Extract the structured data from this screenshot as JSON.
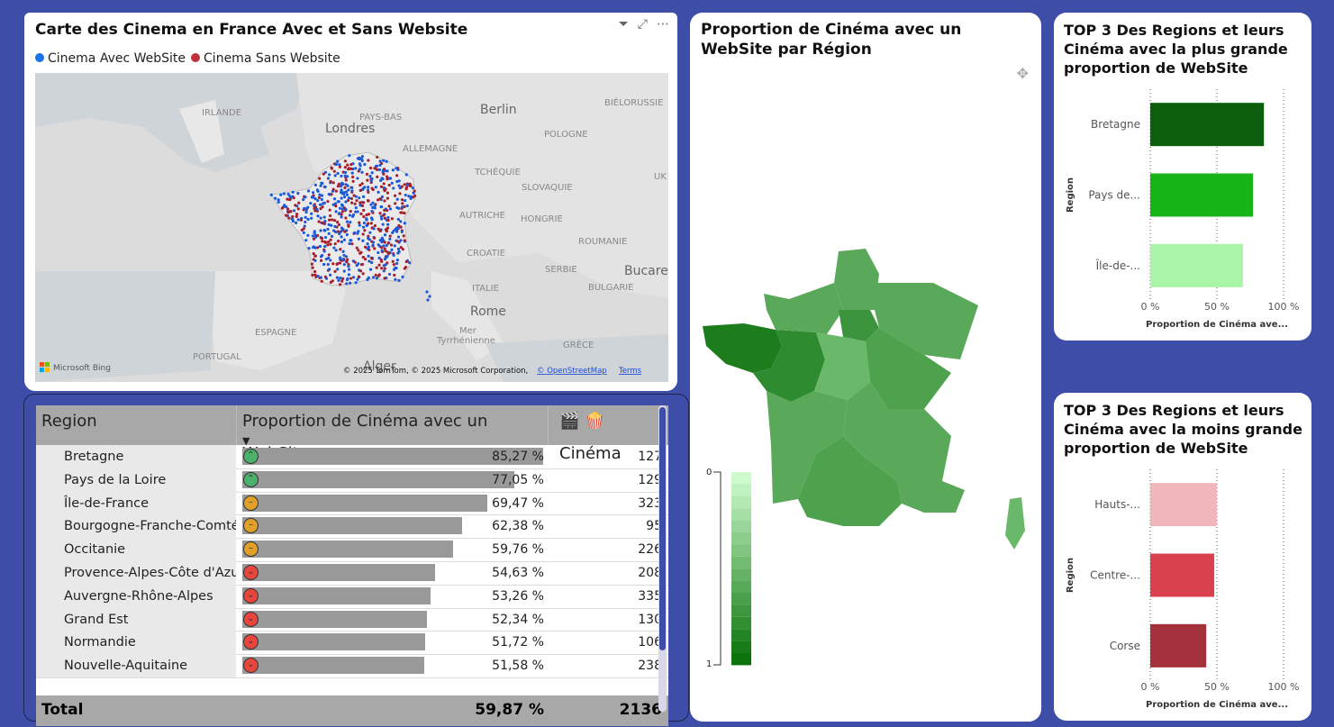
{
  "map": {
    "title": "Carte des Cinema en France Avec et Sans Website",
    "legend": [
      {
        "label": "Cinema Avec WebSite",
        "color": "#1a73e8"
      },
      {
        "label": "Cinema Sans Website",
        "color": "#c0303a"
      }
    ],
    "labels": {
      "irlande": "IRLANDE",
      "londres": "Londres",
      "paysbas": "PAYS-BAS",
      "berlin": "Berlin",
      "pologne": "POLOGNE",
      "bielorussie": "BIÉLORUSSIE",
      "allemagne": "ALLEMAGNE",
      "tcheque": "TCHÉQUIE",
      "slovaquie": "SLOVAQUIE",
      "autriche": "AUTRICHE",
      "hongrie": "HONGRIE",
      "roumanie": "ROUMANIE",
      "croatie": "CROATIE",
      "serbie": "SERBIE",
      "bulgarie": "BULGARIE",
      "bucarest": "Bucare",
      "italie": "ITALIE",
      "rome": "Rome",
      "mer": "Mer",
      "tyrrhenienne": "Tyrrhénienne",
      "espagne": "ESPAGNE",
      "portugal": "PORTUGAL",
      "grece": "GRÈCE",
      "alger": "Alger",
      "uk": "UK"
    },
    "attribution": "© 2025 TomTom, © 2025 Microsoft Corporation,",
    "osm": "© OpenStreetMap",
    "terms": "Terms",
    "bing": "Microsoft Bing"
  },
  "table": {
    "headers": {
      "region": "Region",
      "proportion": "Proportion de Cinéma avec un WebSite",
      "cinema": "🎬 🍿 Cinéma"
    },
    "rows": [
      {
        "region": "Bretagne",
        "pct": "85,27 %",
        "value": 85.27,
        "count": "127",
        "kpi": "up"
      },
      {
        "region": "Pays de la Loire",
        "pct": "77,05 %",
        "value": 77.05,
        "count": "129",
        "kpi": "up"
      },
      {
        "region": "Île-de-France",
        "pct": "69,47 %",
        "value": 69.47,
        "count": "323",
        "kpi": "mid"
      },
      {
        "region": "Bourgogne-Franche-Comté",
        "pct": "62,38 %",
        "value": 62.38,
        "count": "95",
        "kpi": "mid"
      },
      {
        "region": "Occitanie",
        "pct": "59,76 %",
        "value": 59.76,
        "count": "226",
        "kpi": "mid"
      },
      {
        "region": "Provence-Alpes-Côte d'Azur",
        "pct": "54,63 %",
        "value": 54.63,
        "count": "208",
        "kpi": "down"
      },
      {
        "region": "Auvergne-Rhône-Alpes",
        "pct": "53,26 %",
        "value": 53.26,
        "count": "335",
        "kpi": "down"
      },
      {
        "region": "Grand Est",
        "pct": "52,34 %",
        "value": 52.34,
        "count": "130",
        "kpi": "down"
      },
      {
        "region": "Normandie",
        "pct": "51,72 %",
        "value": 51.72,
        "count": "106",
        "kpi": "down"
      },
      {
        "region": "Nouvelle-Aquitaine",
        "pct": "51,58 %",
        "value": 51.58,
        "count": "238",
        "kpi": "down"
      }
    ],
    "total": {
      "label": "Total",
      "pct": "59,87 %",
      "count": "2136"
    }
  },
  "choropleth": {
    "title": "Proportion de Cinéma avec un WebSite par Région",
    "legend_min": "0",
    "legend_max": "1"
  },
  "top3_high": {
    "title": "TOP 3 Des Regions et leurs Cinéma avec la plus grande proportion de WebSite",
    "ylabel": "Region",
    "xlabel": "Proportion de Cinéma ave...",
    "ticks": [
      "0 %",
      "50 %",
      "100 %"
    ]
  },
  "top3_low": {
    "title": "TOP 3 Des Regions et leurs Cinéma avec la moins grande proportion de WebSite",
    "ylabel": "Region",
    "xlabel": "Proportion de Cinéma ave...",
    "ticks": [
      "0 %",
      "50 %",
      "100 %"
    ]
  },
  "chart_data": [
    {
      "type": "bar",
      "title": "TOP 3 Des Regions et leurs Cinéma avec la plus grande proportion de WebSite",
      "categories": [
        "Bretagne",
        "Pays de...",
        "Île-de-..."
      ],
      "values": [
        85.27,
        77.05,
        69.47
      ],
      "colors": [
        "#0b5e0b",
        "#17b417",
        "#a8f5a8"
      ],
      "xlim": [
        0,
        100
      ],
      "ylabel": "Region",
      "xlabel": "Proportion de Cinéma ave..."
    },
    {
      "type": "bar",
      "title": "TOP 3 Des Regions et leurs Cinéma avec la moins grande proportion de WebSite",
      "categories": [
        "Hauts-...",
        "Centre-...",
        "Corse"
      ],
      "values": [
        50,
        48,
        42
      ],
      "colors": [
        "#f0b6bb",
        "#d9414e",
        "#a3303a"
      ],
      "xlim": [
        0,
        100
      ],
      "ylabel": "Region",
      "xlabel": "Proportion de Cinéma ave..."
    }
  ]
}
